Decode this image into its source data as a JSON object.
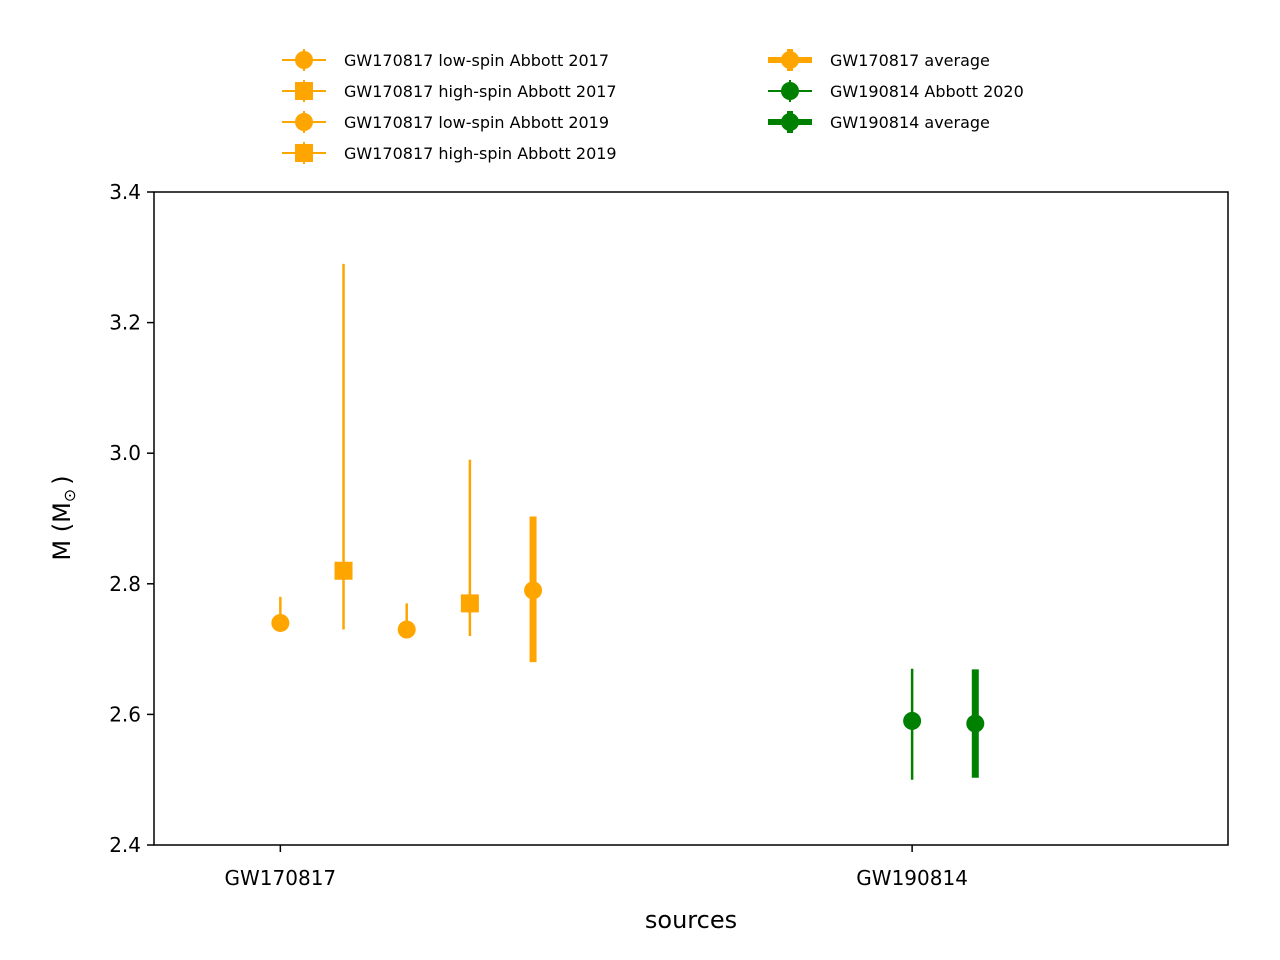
{
  "chart_data": {
    "type": "scatter",
    "xlabel": "sources",
    "ylabel": "M (M",
    "ylabel_sub": "⊙",
    "ylabel_close": ")",
    "ylim": [
      2.4,
      3.4
    ],
    "yticks": [
      2.4,
      2.6,
      2.8,
      3.0,
      3.2,
      3.4
    ],
    "ytick_labels": [
      "2.4",
      "2.6",
      "2.8",
      "3.0",
      "3.2",
      "3.4"
    ],
    "categories": [
      "GW170817",
      "GW190814"
    ],
    "xlim": [
      -0.2,
      1.5
    ],
    "grid": false,
    "legend_placement": "above plot, two columns",
    "colors": {
      "GW170817": "#ffa500",
      "GW190814": "#008000"
    },
    "series": [
      {
        "name": "GW170817 low-spin Abbott 2017",
        "x": 0.0,
        "y": 2.74,
        "yerr_low": 0.01,
        "yerr_high": 0.04,
        "marker": "circle",
        "color": "#ffa500",
        "thick": false
      },
      {
        "name": "GW170817 high-spin Abbott 2017",
        "x": 0.1,
        "y": 2.82,
        "yerr_low": 0.09,
        "yerr_high": 0.47,
        "marker": "square",
        "color": "#ffa500",
        "thick": false
      },
      {
        "name": "GW170817 low-spin Abbott 2019",
        "x": 0.2,
        "y": 2.73,
        "yerr_low": 0.01,
        "yerr_high": 0.04,
        "marker": "circle",
        "color": "#ffa500",
        "thick": false
      },
      {
        "name": "GW170817 high-spin Abbott 2019",
        "x": 0.3,
        "y": 2.77,
        "yerr_low": 0.05,
        "yerr_high": 0.22,
        "marker": "square",
        "color": "#ffa500",
        "thick": false
      },
      {
        "name": "GW170817 average",
        "x": 0.4,
        "y": 2.79,
        "yerr_low": 0.11,
        "yerr_high": 0.113,
        "marker": "circle",
        "color": "#ffa500",
        "thick": true
      },
      {
        "name": "GW190814 Abbott 2020",
        "x": 1.0,
        "y": 2.59,
        "yerr_low": 0.09,
        "yerr_high": 0.08,
        "marker": "circle",
        "color": "#008000",
        "thick": false
      },
      {
        "name": "GW190814 average",
        "x": 1.1,
        "y": 2.586,
        "yerr_low": 0.083,
        "yerr_high": 0.083,
        "marker": "circle",
        "color": "#008000",
        "thick": true
      }
    ],
    "legend_order": [
      0,
      1,
      2,
      3,
      4,
      5,
      6
    ]
  }
}
